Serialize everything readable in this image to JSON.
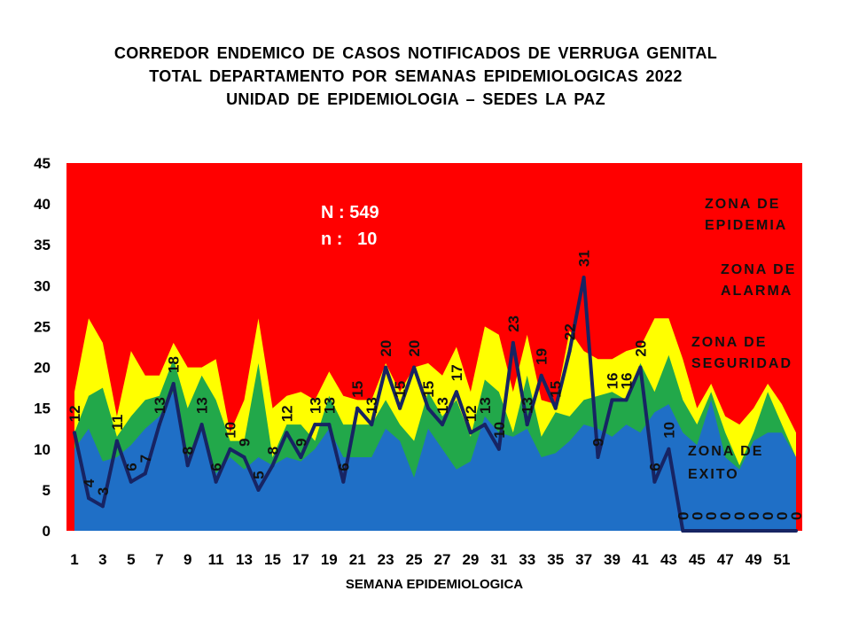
{
  "chart_data": {
    "type": "area",
    "title": [
      "CORREDOR ENDEMICO DE CASOS NOTIFICADOS DE VERRUGA GENITAL",
      "TOTAL DEPARTAMENTO POR SEMANAS EPIDEMIOLOGICAS 2022",
      "UNIDAD DE EPIDEMIOLOGIA – SEDES LA PAZ"
    ],
    "xlabel": "SEMANA EPIDEMIOLOGICA",
    "ylabel": "",
    "ylim": [
      0,
      45
    ],
    "xlim": [
      1,
      52
    ],
    "y_ticks": [
      0,
      5,
      10,
      15,
      20,
      25,
      30,
      35,
      40,
      45
    ],
    "x_tick_labels": [
      1,
      3,
      5,
      7,
      9,
      11,
      13,
      15,
      17,
      19,
      21,
      23,
      25,
      27,
      29,
      31,
      33,
      35,
      37,
      39,
      41,
      43,
      45,
      47,
      49,
      51
    ],
    "grid": false,
    "legend": "none",
    "x": [
      1,
      2,
      3,
      4,
      5,
      6,
      7,
      8,
      9,
      10,
      11,
      12,
      13,
      14,
      15,
      16,
      17,
      18,
      19,
      20,
      21,
      22,
      23,
      24,
      25,
      26,
      27,
      28,
      29,
      30,
      31,
      32,
      33,
      34,
      35,
      36,
      37,
      38,
      39,
      40,
      41,
      42,
      43,
      44,
      45,
      46,
      47,
      48,
      49,
      50,
      51,
      52
    ],
    "zones": [
      {
        "label_lines": [
          "ZONA DE",
          "EPIDEMIA"
        ],
        "color": "#ff0000"
      },
      {
        "label_lines": [
          "ZONA DE",
          "ALARMA"
        ],
        "color": "#ffff00",
        "values": [
          17,
          26,
          23,
          14,
          22,
          19,
          19,
          23,
          20,
          20,
          21,
          12,
          16,
          26,
          15,
          16.5,
          17,
          16,
          19.5,
          16.5,
          16,
          16,
          20.5,
          17,
          20,
          20.5,
          19,
          22.5,
          17,
          25,
          24,
          17,
          24,
          16,
          15.5,
          24.5,
          22,
          21,
          21,
          22,
          22.5,
          26,
          26,
          21,
          15,
          18,
          14,
          13,
          15,
          18,
          15.5,
          12
        ]
      },
      {
        "label_lines": [
          "ZONA DE",
          "SEGURIDAD"
        ],
        "color": "#22a84a",
        "values": [
          12,
          16.5,
          17.5,
          11.5,
          14,
          16,
          16.5,
          21,
          15,
          19,
          16,
          11,
          11,
          20.5,
          9,
          13,
          13,
          11,
          16.5,
          13,
          13,
          13,
          16,
          13,
          11,
          17,
          14,
          16,
          11.5,
          18.5,
          17,
          12,
          19,
          11.5,
          14.5,
          14,
          16,
          16.5,
          17,
          16,
          20.5,
          17,
          21.5,
          16,
          13,
          17,
          12,
          8,
          12,
          17,
          13,
          9
        ]
      },
      {
        "label_lines": [
          "ZONA DE",
          "EXITO"
        ],
        "color": "#1f6fc6",
        "values": [
          10,
          12.5,
          8.5,
          9,
          10.5,
          12.5,
          14,
          17,
          9,
          13,
          7,
          9,
          7.5,
          9,
          8,
          9,
          8.5,
          10,
          12.5,
          9,
          9,
          9,
          12.5,
          11,
          6.5,
          12.5,
          10,
          7.5,
          8.5,
          14,
          12,
          11.5,
          12.5,
          9,
          9.5,
          11,
          13,
          12.5,
          11.5,
          13,
          12,
          14.5,
          15.5,
          12,
          10.5,
          16,
          9,
          7.5,
          11,
          12,
          12,
          9
        ]
      }
    ],
    "cases_line": {
      "type": "line",
      "color": "#172463",
      "data_labels": true,
      "values": [
        12,
        4,
        3,
        11,
        6,
        7,
        13,
        18,
        8,
        13,
        6,
        10,
        9,
        5,
        8,
        12,
        9,
        13,
        13,
        6,
        15,
        13,
        20,
        15,
        20,
        15,
        13,
        17,
        12,
        13,
        10,
        23,
        13,
        19,
        15,
        22,
        31,
        9,
        16,
        16,
        20,
        6,
        10,
        0,
        0,
        0,
        0,
        0,
        0,
        0,
        0,
        0
      ]
    },
    "annotations": [
      "N : 549",
      "n :   10"
    ]
  }
}
